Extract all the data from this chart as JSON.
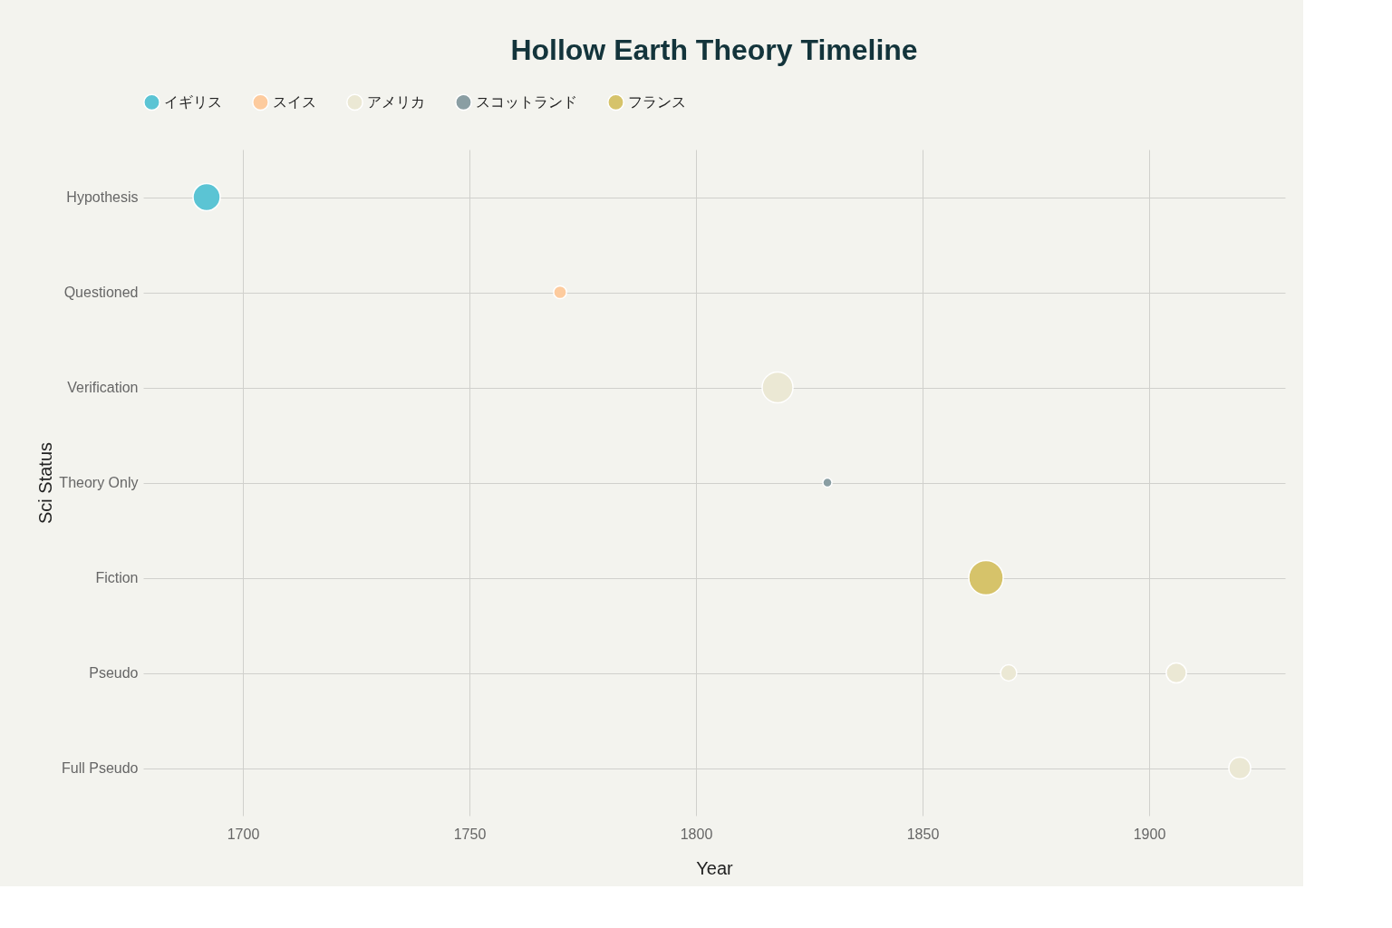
{
  "chart_data": {
    "type": "bubble",
    "orientation": "horizontal",
    "title": "Hollow Earth Theory Timeline",
    "xlabel": "Year",
    "ylabel": "Sci Status",
    "categories": [
      "Hypothesis",
      "Questioned",
      "Verification",
      "Theory Only",
      "Fiction",
      "Pseudo",
      "Full Pseudo"
    ],
    "series": [
      {
        "name": "イギリス",
        "color": "#5bc4d4",
        "values": [
          1692,
          null,
          null,
          null,
          null,
          null,
          null
        ],
        "sizes": [
          0.62,
          null,
          null,
          null,
          null,
          null,
          null
        ]
      },
      {
        "name": "スイス",
        "color": "#fdcb9e",
        "values": [
          null,
          1770,
          null,
          null,
          null,
          null,
          null
        ],
        "sizes": [
          null,
          0.14,
          null,
          null,
          null,
          null,
          null
        ]
      },
      {
        "name": "アメリカ",
        "color": "#ebe8d4",
        "values": [
          null,
          null,
          1818,
          null,
          null,
          1869,
          1920
        ],
        "sizes": [
          null,
          null,
          0.8,
          null,
          null,
          0.22,
          0.4
        ]
      },
      {
        "name": "スコットランド",
        "color": "#8a9ea3",
        "values": [
          null,
          null,
          null,
          1829,
          null,
          null,
          null
        ],
        "sizes": [
          null,
          null,
          null,
          0.07,
          null,
          null,
          null
        ]
      },
      {
        "name": "フランス",
        "color": "#d6c36a",
        "values": [
          null,
          null,
          null,
          null,
          1864,
          null,
          null
        ],
        "sizes": [
          null,
          null,
          null,
          null,
          1,
          null,
          null
        ]
      },
      {
        "color": "#ebe8d4",
        "values": [
          null,
          null,
          null,
          null,
          null,
          1906,
          null
        ],
        "sizes": [
          null,
          null,
          null,
          null,
          null,
          0.34,
          null
        ]
      }
    ],
    "xlim": [
      1678,
      1930
    ],
    "xticks": [
      1700,
      1750,
      1800,
      1850,
      1900
    ],
    "grid": true,
    "legend": "top",
    "marker": "circle"
  }
}
